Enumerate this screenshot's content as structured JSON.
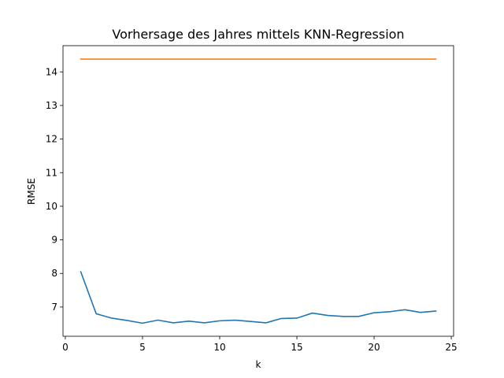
{
  "chart_data": {
    "type": "line",
    "title": "Vorhersage des Jahres mittels KNN-Regression",
    "xlabel": "k",
    "ylabel": "RMSE",
    "xlim": [
      -0.15,
      25.15
    ],
    "ylim": [
      6.13,
      14.78
    ],
    "xticks": [
      0,
      5,
      10,
      15,
      20,
      25
    ],
    "yticks": [
      7,
      8,
      9,
      10,
      11,
      12,
      13,
      14
    ],
    "grid": false,
    "x": [
      1,
      2,
      3,
      4,
      5,
      6,
      7,
      8,
      9,
      10,
      11,
      12,
      13,
      14,
      15,
      16,
      17,
      18,
      19,
      20,
      21,
      22,
      23,
      24
    ],
    "series": [
      {
        "color": "#1f77b4",
        "values": [
          8.05,
          6.8,
          6.67,
          6.6,
          6.52,
          6.61,
          6.53,
          6.58,
          6.53,
          6.59,
          6.61,
          6.57,
          6.53,
          6.66,
          6.67,
          6.82,
          6.75,
          6.72,
          6.72,
          6.83,
          6.86,
          6.92,
          6.84,
          6.88
        ]
      },
      {
        "color": "#ff7f0e",
        "values": [
          14.38,
          14.38,
          14.38,
          14.38,
          14.38,
          14.38,
          14.38,
          14.38,
          14.38,
          14.38,
          14.38,
          14.38,
          14.38,
          14.38,
          14.38,
          14.38,
          14.38,
          14.38,
          14.38,
          14.38,
          14.38,
          14.38,
          14.38,
          14.38
        ]
      }
    ]
  }
}
